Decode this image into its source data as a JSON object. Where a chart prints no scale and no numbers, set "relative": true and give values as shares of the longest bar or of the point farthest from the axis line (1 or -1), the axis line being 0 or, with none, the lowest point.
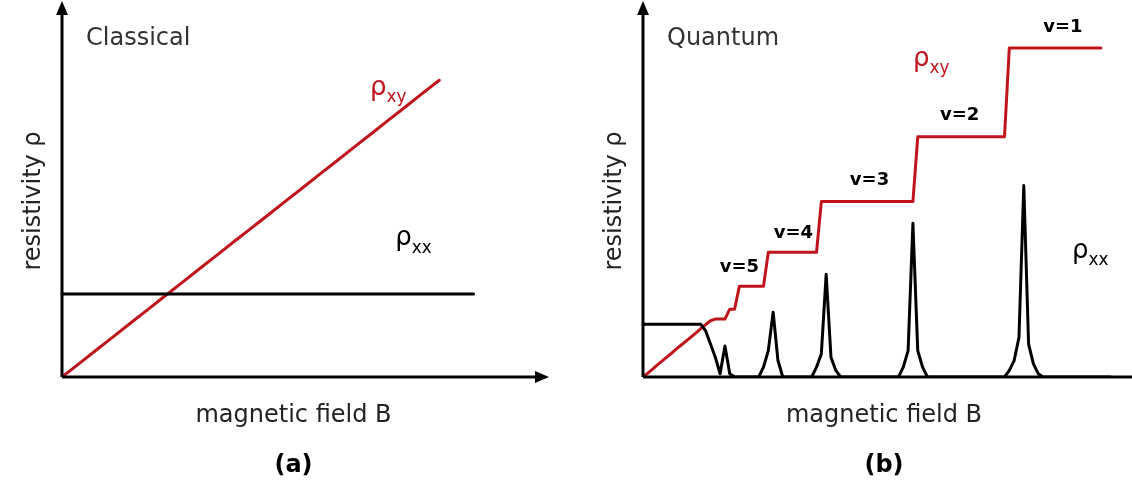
{
  "chart_data": [
    {
      "type": "line",
      "title": "Classical",
      "xlabel": "magnetic field B",
      "ylabel": "resistivity ρ",
      "relative": true,
      "line_style": "solid",
      "categories": [
        null,
        null,
        null,
        null,
        null,
        null,
        null,
        null,
        null,
        null,
        null,
        null,
        null,
        null,
        null,
        null,
        null,
        null,
        null,
        null,
        null,
        null,
        null,
        null,
        null,
        null,
        null,
        null
      ],
      "series": [
        {
          "name": "ρ$_{xx}$",
          "color": "#000000",
          "values": [
            0.28,
            0.28,
            0.28,
            0.28,
            0.28,
            0.28,
            0.28,
            0.28,
            0.28,
            0.28,
            0.28,
            0.28,
            0.28,
            0.28,
            0.28,
            0.28,
            0.28,
            0.28,
            0.28,
            0.28,
            0.28,
            0.28,
            0.28,
            0.28,
            0.28,
            null,
            null,
            null
          ]
        },
        {
          "name": "ρ$_{xy}$",
          "color": "#c0141c",
          "values": [
            0,
            0.045,
            0.091,
            0.136,
            0.182,
            0.227,
            0.273,
            0.318,
            0.364,
            0.409,
            0.455,
            0.5,
            0.545,
            0.591,
            0.636,
            0.682,
            0.727,
            0.773,
            0.818,
            0.864,
            0.909,
            0.955,
            1,
            null,
            null,
            null,
            null,
            null
          ]
        }
      ],
      "annotations": [
        "(a)"
      ]
    },
    {
      "type": "line",
      "title": "Quantum",
      "xlabel": "magnetic field B",
      "ylabel": "resistivity ρ",
      "relative": true,
      "line_style": "solid",
      "categories": [
        null,
        null,
        null,
        null,
        null,
        null,
        null,
        null,
        null,
        null,
        null,
        null,
        null,
        null,
        null,
        null,
        null,
        null,
        null,
        null,
        null,
        null,
        null,
        null,
        null,
        null,
        null,
        null,
        null,
        null,
        null,
        null,
        null,
        null,
        null,
        null,
        null,
        null,
        null,
        null,
        null,
        null,
        null,
        null,
        null,
        null,
        null,
        null,
        null,
        null,
        null,
        null,
        null,
        null,
        null,
        null,
        null,
        null,
        null,
        null,
        null,
        null,
        null,
        null,
        null,
        null,
        null,
        null,
        null,
        null,
        null,
        null,
        null,
        null,
        null,
        null,
        null,
        null,
        null,
        null,
        null,
        null,
        null,
        null,
        null,
        null,
        null,
        null,
        null,
        null,
        null,
        null,
        null,
        null,
        null,
        null,
        null,
        null,
        null,
        null,
        null
      ],
      "series": [
        {
          "name": "ρ$_{xx}$",
          "color": "#000000",
          "values": [
            0.16,
            0.16,
            0.16,
            0.16,
            0.16,
            0.16,
            0.16,
            0.16,
            0.16,
            0.16,
            0.16,
            0.16,
            0.16,
            0.14,
            0.1,
            0.06,
            0.01,
            0.094,
            0.01,
            0,
            0,
            0,
            0,
            0,
            0,
            0.03,
            0.08,
            0.197,
            0.05,
            0,
            0,
            0,
            0,
            0,
            0,
            0,
            0.03,
            0.07,
            0.312,
            0.06,
            0.02,
            0,
            0,
            0,
            0,
            0,
            0,
            0,
            0,
            0,
            0,
            0,
            0,
            0,
            0.03,
            0.08,
            0.467,
            0.08,
            0.03,
            0,
            0,
            0,
            0,
            0,
            0,
            0,
            0,
            0,
            0,
            0,
            0,
            0,
            0,
            0,
            0,
            0,
            0.02,
            0.05,
            0.12,
            0.582,
            0.1,
            0.04,
            0.01,
            0,
            0,
            0,
            0,
            0,
            0,
            0,
            0,
            0,
            0,
            0,
            0,
            0,
            0,
            0,
            null,
            null,
            null
          ]
        },
        {
          "name": "ρ$_{xy}$",
          "color": "#c0141c",
          "values": [
            0,
            0.012,
            0.024,
            0.037,
            0.049,
            0.061,
            0.073,
            0.086,
            0.098,
            0.11,
            0.122,
            0.134,
            0.147,
            0.159,
            0.171,
            0.176,
            0.176,
            0.176,
            0.206,
            0.206,
            0.276,
            0.276,
            0.276,
            0.276,
            0.276,
            0.276,
            0.379,
            0.379,
            0.379,
            0.379,
            0.379,
            0.379,
            0.379,
            0.379,
            0.379,
            0.379,
            0.379,
            0.533,
            0.533,
            0.533,
            0.533,
            0.533,
            0.533,
            0.533,
            0.533,
            0.533,
            0.533,
            0.533,
            0.533,
            0.533,
            0.533,
            0.533,
            0.533,
            0.533,
            0.533,
            0.533,
            0.533,
            0.73,
            0.73,
            0.73,
            0.73,
            0.73,
            0.73,
            0.73,
            0.73,
            0.73,
            0.73,
            0.73,
            0.73,
            0.73,
            0.73,
            0.73,
            0.73,
            0.73,
            0.73,
            0.73,
            1,
            1,
            1,
            1,
            1,
            1,
            1,
            1,
            1,
            1,
            1,
            1,
            1,
            1,
            1,
            1,
            1,
            1,
            1,
            1,
            null,
            null,
            null,
            null,
            null
          ]
        }
      ],
      "annotations": [
        "v=5",
        "v=4",
        "v=3",
        "v=2",
        "v=1",
        "(b)"
      ]
    }
  ]
}
